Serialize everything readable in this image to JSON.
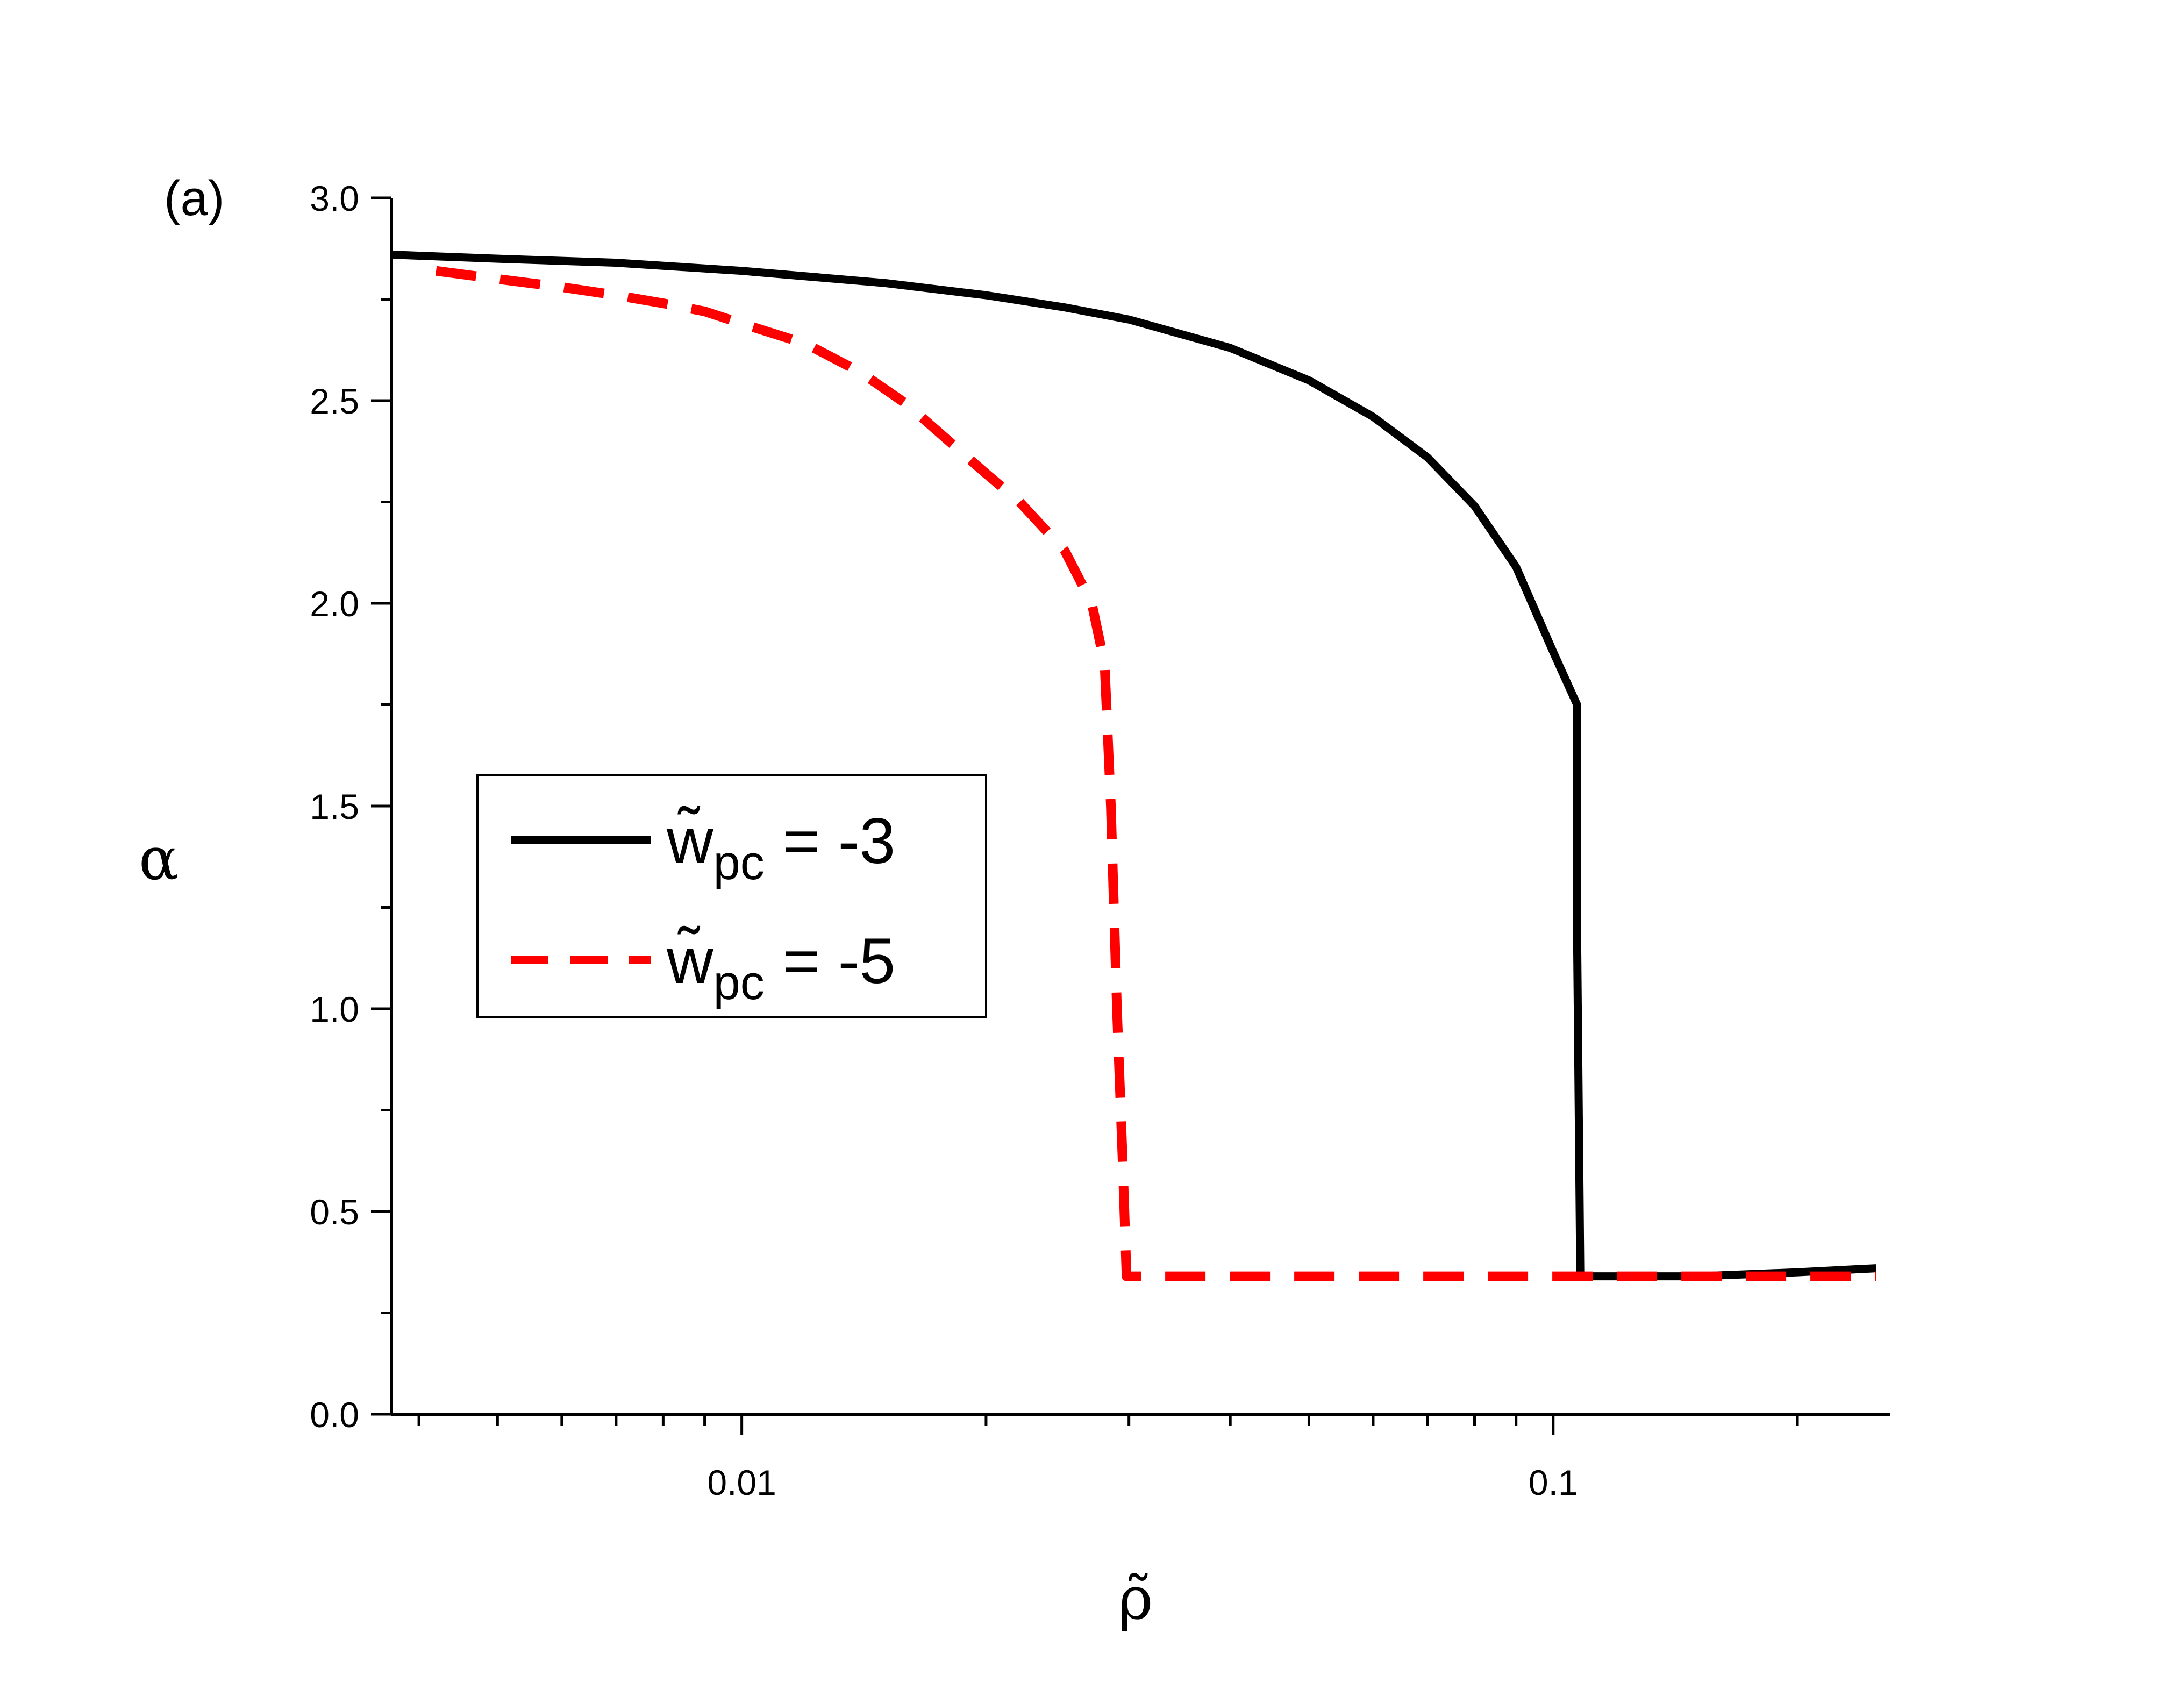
{
  "chart_data": {
    "type": "line",
    "panel_label": "(a)",
    "xlabel": "ρ̃",
    "ylabel": "α",
    "x_scale": "log",
    "xlim": [
      0.0037,
      0.26
    ],
    "ylim": [
      0,
      3.0
    ],
    "x_major_ticks": [
      {
        "value": 0.01,
        "label": "0.01"
      },
      {
        "value": 0.1,
        "label": "0.1"
      }
    ],
    "x_minor_ticks": [
      0.004,
      0.005,
      0.006,
      0.007,
      0.008,
      0.009,
      0.02,
      0.03,
      0.04,
      0.05,
      0.06,
      0.07,
      0.08,
      0.09,
      0.2
    ],
    "y_major_ticks": [
      {
        "value": 0.0,
        "label": "0.0"
      },
      {
        "value": 0.5,
        "label": "0.5"
      },
      {
        "value": 1.0,
        "label": "1.0"
      },
      {
        "value": 1.5,
        "label": "1.5"
      },
      {
        "value": 2.0,
        "label": "2.0"
      },
      {
        "value": 2.5,
        "label": "2.5"
      },
      {
        "value": 3.0,
        "label": "3.0"
      }
    ],
    "y_minor_ticks": [
      0.25,
      0.75,
      1.25,
      1.75,
      2.25,
      2.75
    ],
    "grid": false,
    "legend_position": "center-left",
    "series": [
      {
        "legend_main": "w̃",
        "legend_sub": "pc",
        "legend_value": " = -3",
        "color": "#000000",
        "style": "solid",
        "points": [
          [
            0.0037,
            2.86
          ],
          [
            0.005,
            2.85
          ],
          [
            0.007,
            2.84
          ],
          [
            0.01,
            2.82
          ],
          [
            0.015,
            2.79
          ],
          [
            0.02,
            2.76
          ],
          [
            0.025,
            2.73
          ],
          [
            0.03,
            2.7
          ],
          [
            0.04,
            2.63
          ],
          [
            0.05,
            2.55
          ],
          [
            0.06,
            2.46
          ],
          [
            0.07,
            2.36
          ],
          [
            0.08,
            2.24
          ],
          [
            0.09,
            2.09
          ],
          [
            0.1,
            1.88
          ],
          [
            0.107,
            1.75
          ],
          [
            0.107,
            1.2
          ],
          [
            0.108,
            0.34
          ],
          [
            0.15,
            0.34
          ],
          [
            0.2,
            0.35
          ],
          [
            0.25,
            0.36
          ]
        ]
      },
      {
        "legend_main": "w̃",
        "legend_sub": "pc",
        "legend_value": " = -5",
        "color": "#ff0000",
        "style": "dashed",
        "points": [
          [
            0.0042,
            2.82
          ],
          [
            0.005,
            2.8
          ],
          [
            0.006,
            2.78
          ],
          [
            0.007,
            2.76
          ],
          [
            0.008,
            2.74
          ],
          [
            0.009,
            2.72
          ],
          [
            0.01,
            2.69
          ],
          [
            0.012,
            2.64
          ],
          [
            0.014,
            2.57
          ],
          [
            0.016,
            2.49
          ],
          [
            0.018,
            2.4
          ],
          [
            0.02,
            2.32
          ],
          [
            0.022,
            2.25
          ],
          [
            0.025,
            2.13
          ],
          [
            0.027,
            2.0
          ],
          [
            0.028,
            1.85
          ],
          [
            0.0285,
            1.5
          ],
          [
            0.029,
            1.0
          ],
          [
            0.0295,
            0.6
          ],
          [
            0.0298,
            0.34
          ],
          [
            0.05,
            0.34
          ],
          [
            0.1,
            0.34
          ],
          [
            0.15,
            0.34
          ],
          [
            0.25,
            0.34
          ]
        ]
      }
    ]
  }
}
